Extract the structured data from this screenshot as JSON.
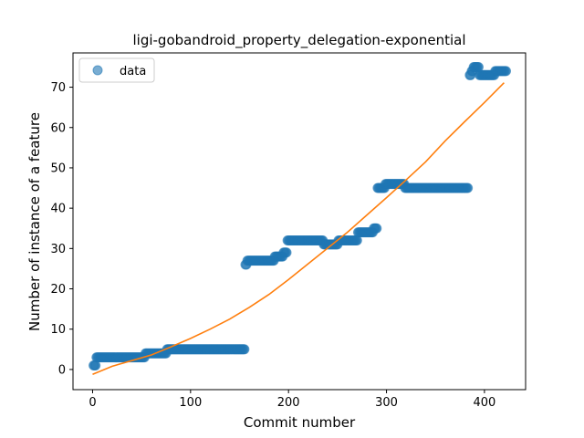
{
  "chart_data": {
    "type": "scatter",
    "title": "ligi-gobandroid_property_delegation-exponential",
    "xlabel": "Commit number",
    "ylabel": "Number of instance of a feature",
    "xlim": [
      -20,
      442
    ],
    "ylim": [
      -5,
      78.5
    ],
    "xticks": [
      0,
      100,
      200,
      300,
      400
    ],
    "yticks": [
      0,
      10,
      20,
      30,
      40,
      50,
      60,
      70
    ],
    "grid": false,
    "legend": "top-left",
    "series": [
      {
        "name": "data",
        "kind": "points",
        "color": "#1f77b4",
        "step_segments": [
          {
            "x0": 1,
            "x1": 3,
            "y": 1
          },
          {
            "x0": 4,
            "x1": 48,
            "y": 3
          },
          {
            "x0": 49,
            "x1": 53,
            "y": 3
          },
          {
            "x0": 54,
            "x1": 75,
            "y": 4
          },
          {
            "x0": 76,
            "x1": 155,
            "y": 5
          },
          {
            "x0": 156,
            "x1": 157,
            "y": 26
          },
          {
            "x0": 158,
            "x1": 185,
            "y": 27
          },
          {
            "x0": 186,
            "x1": 194,
            "y": 28
          },
          {
            "x0": 195,
            "x1": 198,
            "y": 29
          },
          {
            "x0": 199,
            "x1": 235,
            "y": 32
          },
          {
            "x0": 236,
            "x1": 250,
            "y": 31
          },
          {
            "x0": 251,
            "x1": 270,
            "y": 32
          },
          {
            "x0": 271,
            "x1": 286,
            "y": 34
          },
          {
            "x0": 287,
            "x1": 290,
            "y": 35
          },
          {
            "x0": 291,
            "x1": 298,
            "y": 45
          },
          {
            "x0": 299,
            "x1": 318,
            "y": 46
          },
          {
            "x0": 319,
            "x1": 383,
            "y": 45
          },
          {
            "x0": 385,
            "x1": 386,
            "y": 73
          },
          {
            "x0": 387,
            "x1": 388,
            "y": 74
          },
          {
            "x0": 389,
            "x1": 394,
            "y": 75
          },
          {
            "x0": 395,
            "x1": 410,
            "y": 73
          },
          {
            "x0": 411,
            "x1": 422,
            "y": 74
          }
        ]
      },
      {
        "name": "",
        "kind": "line",
        "color": "#ff7f0e",
        "x": [
          0,
          20,
          40,
          60,
          80,
          100,
          120,
          140,
          160,
          180,
          200,
          220,
          240,
          260,
          280,
          300,
          320,
          340,
          360,
          380,
          400,
          420
        ],
        "y": [
          -1.2,
          0.8,
          2.2,
          3.6,
          5.6,
          7.7,
          10.0,
          12.5,
          15.4,
          18.6,
          22.3,
          26.2,
          30.1,
          34.0,
          38.3,
          42.6,
          47.0,
          51.5,
          56.7,
          61.5,
          66.2,
          71.1
        ]
      }
    ]
  }
}
